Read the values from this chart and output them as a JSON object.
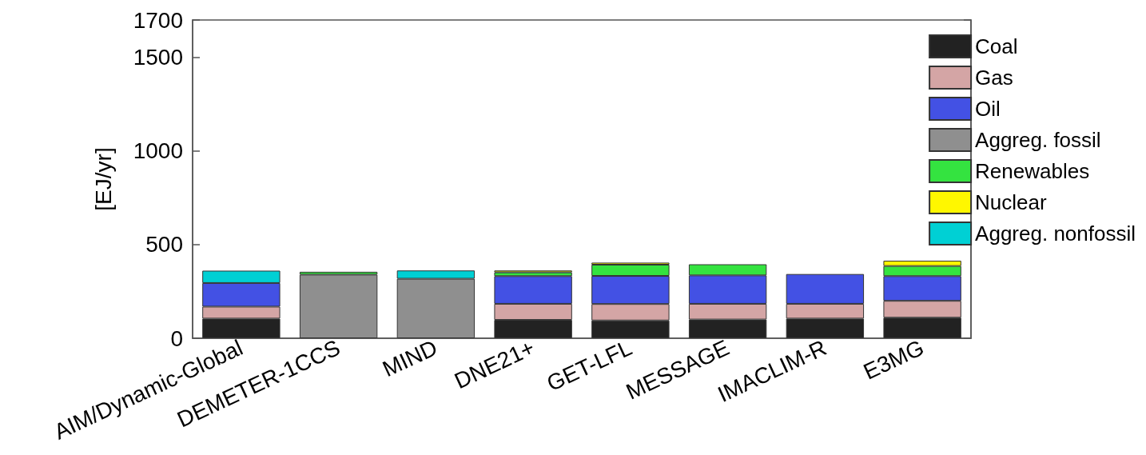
{
  "chart_data": {
    "type": "bar",
    "stacked": true,
    "ylabel": "[EJ/yr]",
    "categories": [
      "AIM/Dynamic-Global",
      "DEMETER-1CCS",
      "MIND",
      "DNE21+",
      "GET-LFL",
      "MESSAGE",
      "IMACLIM-R",
      "E3MG"
    ],
    "series": [
      {
        "name": "Coal",
        "color": "#222222",
        "values": [
          105,
          null,
          null,
          98,
          95,
          100,
          105,
          110
        ]
      },
      {
        "name": "Gas",
        "color": "#d4a5a5",
        "values": [
          64,
          null,
          null,
          86,
          88,
          84,
          79,
          90
        ]
      },
      {
        "name": "Oil",
        "color": "#4351e4",
        "values": [
          126,
          null,
          null,
          148,
          150,
          152,
          159,
          132
        ]
      },
      {
        "name": "Aggreg. fossil",
        "color": "#8f8f8f",
        "values": [
          null,
          340,
          318,
          null,
          null,
          null,
          null,
          null
        ]
      },
      {
        "name": "Renewables",
        "color": "#34e340",
        "values": [
          null,
          15,
          null,
          20,
          60,
          59,
          null,
          54
        ]
      },
      {
        "name": "Nuclear",
        "color": "#fff700",
        "values": [
          null,
          null,
          null,
          10,
          11,
          null,
          null,
          28
        ]
      },
      {
        "name": "Aggreg. nonfossil",
        "color": "#00d0d4",
        "values": [
          66,
          null,
          44,
          null,
          null,
          null,
          null,
          null
        ]
      }
    ],
    "ylim": [
      0,
      1700
    ],
    "yticks": [
      0,
      500,
      1000,
      1500,
      1700
    ],
    "grid": false,
    "legend": "top right"
  }
}
